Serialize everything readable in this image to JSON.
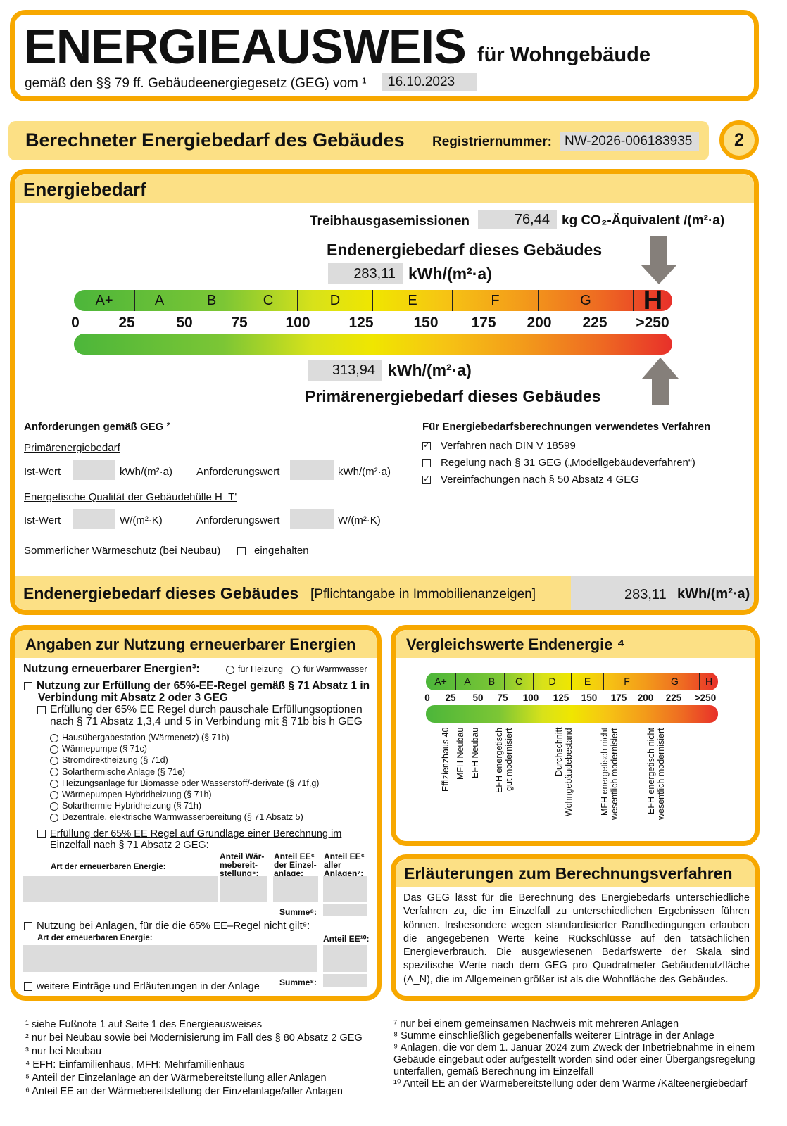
{
  "title": {
    "main": "ENERGIEAUSWEIS",
    "sub": "für Wohngebäude",
    "law": "gemäß den §§ 79 ff. Gebäudeenergiegesetz (GEG) vom ¹",
    "date": "16.10.2023"
  },
  "section": {
    "title": "Berechneter Energiebedarf des Gebäudes",
    "reg_label": "Registriernummer:",
    "reg_value": "NW-2026-006183935",
    "page": "2"
  },
  "energy": {
    "title": "Energiebedarf",
    "ghg_label": "Treibhausgasemissionen",
    "ghg_value": "76,44",
    "ghg_unit": "kg CO₂-Äquivalent /(m²·a)",
    "end_label": "Endenergiebedarf dieses Gebäudes",
    "end_value": "283,11",
    "unit": "kWh/(m²·a)",
    "prim_value": "313,94",
    "prim_label": "Primärenergiebedarf dieses Gebäudes",
    "classes": [
      "A+",
      "A",
      "B",
      "C",
      "D",
      "E",
      "F",
      "G",
      "H"
    ],
    "current_class": "H",
    "ticks": [
      "0",
      "25",
      "50",
      "75",
      "100",
      "125",
      "150",
      "175",
      "200",
      "225",
      ">250"
    ]
  },
  "req": {
    "title": "Anforderungen gemäß GEG ²",
    "prim": "Primärenergiebedarf",
    "ist": "Ist-Wert",
    "unit1": "kWh/(m²·a)",
    "anf": "Anforderungswert",
    "huelle": "Energetische Qualität der Gebäudehülle H_T'",
    "unit2": "W/(m²·K)",
    "sommer": "Sommerlicher Wärmeschutz (bei Neubau)",
    "eingehalten": "eingehalten"
  },
  "verfahren": {
    "title": "Für Energiebedarfsberechnungen verwendetes Verfahren",
    "items": [
      {
        "label": "Verfahren nach DIN V 18599",
        "checked": true
      },
      {
        "label": "Regelung nach § 31 GEG („Modellgebäudeverfahren“)",
        "checked": false
      },
      {
        "label": "Vereinfachungen nach § 50 Absatz 4 GEG",
        "checked": true
      }
    ]
  },
  "pflicht": {
    "label": "Endenergiebedarf dieses Gebäudes",
    "note": "[Pflichtangabe in Immobilienanzeigen]",
    "value": "283,11",
    "unit": "kWh/(m²·a)"
  },
  "ee": {
    "title": "Angaben zur Nutzung erneuerbarer Energien",
    "nutzung": "Nutzung erneuerbarer Energien³:",
    "heizung": "für Heizung",
    "warmwasser": "für Warmwasser",
    "rule": "Nutzung zur Erfüllung der 65%-EE-Regel gemäß § 71 Absatz 1 in Verbindung mit Absatz 2 oder 3 GEG",
    "pauschal": "Erfüllung der 65% EE Regel durch pauschale Erfüllungsoptionen nach § 71 Absatz 1,3,4 und 5 in Verbindung mit § 71b bis h GEG",
    "options": [
      "Hausübergabestation (Wärmenetz) (§ 71b)",
      "Wärmepumpe (§ 71c)",
      "Stromdirektheizung (§ 71d)",
      "Solarthermische Anlage (§ 71e)",
      "Heizungsanlage für Biomasse oder Wasserstoff/-derivate (§ 71f,g)",
      "Wärmepumpen-Hybridheizung (§ 71h)",
      "Solarthermie-Hybridheizung (§ 71h)",
      "Dezentrale, elektrische Warmwasserbereitung (§ 71 Absatz 5)"
    ],
    "einzelfall": "Erfüllung der 65% EE Regel auf Grundlage einer Berechnung im Einzelfall nach § 71 Absatz 2 GEG:",
    "art": "Art der erneuerbaren Energie:",
    "col1": "Anteil Wär-mebereit-stellung⁵:",
    "col2": "Anteil EE⁶ der Einzel-anlage:",
    "col3": "Anteil EE⁶ aller Anlagen⁷:",
    "summe": "Summe⁸:",
    "nicht": "Nutzung bei Anlagen, für die die 65% EE–Regel nicht gilt⁹:",
    "art2": "Art der erneuerbaren Energie:",
    "anteil": "Anteil EE¹⁰:",
    "weitere": "weitere Einträge und Erläuterungen in der Anlage"
  },
  "vergleich": {
    "title": "Vergleichswerte Endenergie ⁴",
    "labels": [
      "Effizienzhaus 40",
      "MFH Neubau",
      "EFH Neubau",
      "EFH energetisch\ngut modernisiert",
      "Durchschnitt\nWohngebäudebestand",
      "MFH energetisch nicht\nwesentlich modernisiert",
      "EFH energetisch nicht\nwesentlich modernisiert"
    ]
  },
  "erl": {
    "title": "Erläuterungen zum Berechnungsverfahren",
    "text": "Das GEG lässt für die Berechnung des Energiebedarfs unterschiedliche Verfahren zu, die im Einzelfall zu unterschiedlichen Ergebnissen führen können. Insbesondere wegen standardisierter Randbedingungen erlauben die angegebenen Werte keine Rückschlüsse auf den tatsächlichen Energieverbrauch. Die ausgewiesenen Bedarfswerte der Skala sind spezifische Werte nach dem GEG pro Quadratmeter Gebäudenutzfläche (A_N), die im Allgemeinen größer ist als die Wohnfläche des Gebäudes."
  },
  "footnotes_left": [
    "¹ siehe Fußnote 1 auf Seite 1 des Energieausweises",
    "² nur bei Neubau sowie bei Modernisierung im Fall des § 80 Absatz 2 GEG",
    "³ nur bei Neubau",
    "⁴ EFH: Einfamilienhaus, MFH: Mehrfamilienhaus",
    "⁵ Anteil der Einzelanlage an der Wärmebereitstellung aller Anlagen",
    "⁶ Anteil EE an der Wärmebereitstellung der Einzelanlage/aller Anlagen"
  ],
  "footnotes_right": [
    "⁷ nur bei einem gemeinsamen Nachweis mit mehreren Anlagen",
    "⁸ Summe einschließlich gegebenenfalls weiterer Einträge in der Anlage",
    "⁹ Anlagen, die vor dem 1. Januar 2024 zum Zweck der Inbetriebnahme in einem Gebäude eingebaut oder aufgestellt worden sind oder einer Übergangsregelung unterfallen, gemäß Berechnung im Einzelfall",
    "¹⁰ Anteil EE an der Wärmebereitstellung oder dem Wärme /Kälteenergiebedarf"
  ],
  "colors": {
    "accent": "#f7a800",
    "header": "#fce085",
    "field": "#dcdcdc"
  }
}
